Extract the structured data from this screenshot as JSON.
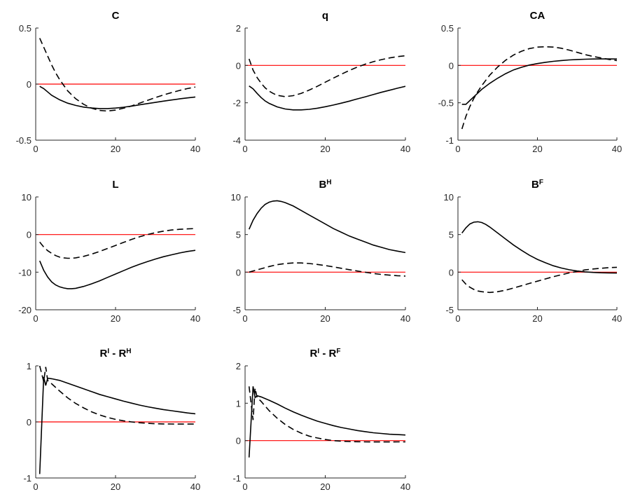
{
  "figure": {
    "background": "#ffffff",
    "colors": {
      "zero_line": "#ff0000",
      "series": "#000000",
      "axes": "#262626"
    }
  },
  "chart_data": [
    {
      "type": "line",
      "title": "C",
      "xlim": [
        0,
        40
      ],
      "ylim": [
        -0.5,
        0.5
      ],
      "xticks": [
        0,
        20,
        40
      ],
      "xtick_labels": [
        "0",
        "20",
        "40"
      ],
      "yticks": [
        -0.5,
        0,
        0.5
      ],
      "ytick_labels": [
        "-0.5",
        "0",
        "0.5"
      ],
      "hline": 0,
      "series": [
        {
          "style": "solid",
          "x": [
            1,
            2,
            3,
            4,
            5,
            6,
            8,
            10,
            12,
            14,
            16,
            18,
            20,
            22,
            24,
            26,
            28,
            30,
            32,
            34,
            36,
            38,
            40
          ],
          "y": [
            -0.02,
            -0.04,
            -0.07,
            -0.1,
            -0.12,
            -0.14,
            -0.17,
            -0.19,
            -0.205,
            -0.213,
            -0.218,
            -0.218,
            -0.214,
            -0.206,
            -0.196,
            -0.185,
            -0.174,
            -0.163,
            -0.152,
            -0.142,
            -0.132,
            -0.123,
            -0.115
          ]
        },
        {
          "style": "dashed",
          "x": [
            1,
            2,
            3,
            4,
            5,
            6,
            7,
            8,
            10,
            12,
            14,
            16,
            18,
            20,
            22,
            24,
            26,
            28,
            30,
            32,
            34,
            36,
            38,
            40
          ],
          "y": [
            0.41,
            0.33,
            0.25,
            0.17,
            0.1,
            0.04,
            -0.01,
            -0.06,
            -0.13,
            -0.18,
            -0.215,
            -0.235,
            -0.24,
            -0.232,
            -0.215,
            -0.195,
            -0.17,
            -0.145,
            -0.12,
            -0.097,
            -0.076,
            -0.057,
            -0.04,
            -0.026
          ]
        }
      ]
    },
    {
      "type": "line",
      "title": "q",
      "xlim": [
        0,
        40
      ],
      "ylim": [
        -4,
        2
      ],
      "xticks": [
        0,
        20,
        40
      ],
      "xtick_labels": [
        "0",
        "20",
        "40"
      ],
      "yticks": [
        -4,
        -2,
        0,
        2
      ],
      "ytick_labels": [
        "-4",
        "-2",
        "0",
        "2"
      ],
      "hline": 0,
      "series": [
        {
          "style": "solid",
          "x": [
            1,
            2,
            3,
            4,
            5,
            6,
            8,
            10,
            12,
            14,
            16,
            18,
            20,
            22,
            24,
            26,
            28,
            30,
            32,
            34,
            36,
            38,
            40
          ],
          "y": [
            -1.1,
            -1.25,
            -1.5,
            -1.72,
            -1.9,
            -2.03,
            -2.22,
            -2.33,
            -2.38,
            -2.38,
            -2.35,
            -2.29,
            -2.21,
            -2.12,
            -2.02,
            -1.91,
            -1.79,
            -1.68,
            -1.56,
            -1.44,
            -1.33,
            -1.22,
            -1.12
          ]
        },
        {
          "style": "dashed",
          "x": [
            1,
            2,
            3,
            4,
            5,
            6,
            7,
            8,
            10,
            12,
            14,
            16,
            18,
            20,
            22,
            24,
            26,
            28,
            30,
            32,
            34,
            36,
            38,
            40
          ],
          "y": [
            0.35,
            -0.25,
            -0.65,
            -0.95,
            -1.2,
            -1.38,
            -1.5,
            -1.6,
            -1.67,
            -1.62,
            -1.5,
            -1.32,
            -1.12,
            -0.9,
            -0.68,
            -0.47,
            -0.27,
            -0.09,
            0.07,
            0.2,
            0.31,
            0.4,
            0.47,
            0.52
          ]
        }
      ]
    },
    {
      "type": "line",
      "title": "CA",
      "xlim": [
        0,
        40
      ],
      "ylim": [
        -1,
        0.5
      ],
      "xticks": [
        0,
        20,
        40
      ],
      "xtick_labels": [
        "0",
        "20",
        "40"
      ],
      "yticks": [
        -1,
        -0.5,
        0,
        0.5
      ],
      "ytick_labels": [
        "-1",
        "-0.5",
        "0",
        "0.5"
      ],
      "hline": 0,
      "series": [
        {
          "style": "solid",
          "x": [
            1,
            2,
            3,
            4,
            5,
            6,
            8,
            10,
            12,
            14,
            16,
            18,
            20,
            22,
            24,
            26,
            28,
            30,
            32,
            34,
            36,
            38,
            40
          ],
          "y": [
            -0.52,
            -0.52,
            -0.47,
            -0.42,
            -0.37,
            -0.32,
            -0.24,
            -0.17,
            -0.11,
            -0.06,
            -0.025,
            0.005,
            0.025,
            0.042,
            0.055,
            0.065,
            0.073,
            0.079,
            0.083,
            0.086,
            0.087,
            0.087,
            0.086
          ]
        },
        {
          "style": "dashed",
          "x": [
            1,
            2,
            3,
            4,
            5,
            6,
            8,
            10,
            12,
            14,
            16,
            18,
            20,
            22,
            24,
            26,
            28,
            30,
            32,
            34,
            36,
            38,
            40
          ],
          "y": [
            -0.85,
            -0.68,
            -0.55,
            -0.44,
            -0.35,
            -0.27,
            -0.13,
            -0.02,
            0.07,
            0.14,
            0.19,
            0.225,
            0.245,
            0.25,
            0.245,
            0.23,
            0.205,
            0.175,
            0.145,
            0.12,
            0.1,
            0.08,
            0.065
          ]
        }
      ]
    },
    {
      "type": "line",
      "title": "L",
      "xlim": [
        0,
        40
      ],
      "ylim": [
        -20,
        10
      ],
      "xticks": [
        0,
        20,
        40
      ],
      "xtick_labels": [
        "0",
        "20",
        "40"
      ],
      "yticks": [
        -20,
        -10,
        0,
        10
      ],
      "ytick_labels": [
        "-20",
        "-10",
        "0",
        "10"
      ],
      "hline": 0,
      "series": [
        {
          "style": "solid",
          "x": [
            1,
            2,
            3,
            4,
            5,
            6,
            7,
            8,
            9,
            10,
            12,
            14,
            16,
            18,
            20,
            22,
            24,
            26,
            28,
            30,
            32,
            34,
            36,
            38,
            40
          ],
          "y": [
            -7,
            -9.5,
            -11.3,
            -12.6,
            -13.4,
            -13.9,
            -14.2,
            -14.4,
            -14.4,
            -14.3,
            -13.8,
            -13.1,
            -12.3,
            -11.4,
            -10.5,
            -9.6,
            -8.7,
            -7.9,
            -7.2,
            -6.5,
            -5.9,
            -5.4,
            -4.9,
            -4.5,
            -4.2
          ]
        },
        {
          "style": "dashed",
          "x": [
            1,
            2,
            3,
            4,
            5,
            6,
            7,
            8,
            9,
            10,
            12,
            14,
            16,
            18,
            20,
            22,
            24,
            26,
            28,
            30,
            32,
            34,
            36,
            38,
            40
          ],
          "y": [
            -2,
            -3.3,
            -4.3,
            -5,
            -5.6,
            -6,
            -6.2,
            -6.3,
            -6.3,
            -6.2,
            -5.8,
            -5.2,
            -4.5,
            -3.7,
            -2.9,
            -2.1,
            -1.3,
            -0.6,
            0,
            0.5,
            0.9,
            1.2,
            1.4,
            1.5,
            1.6
          ]
        }
      ]
    },
    {
      "type": "line",
      "title": "B",
      "title_superscript": "H",
      "xlim": [
        0,
        40
      ],
      "ylim": [
        -5,
        10
      ],
      "xticks": [
        0,
        20,
        40
      ],
      "xtick_labels": [
        "0",
        "20",
        "40"
      ],
      "yticks": [
        -5,
        0,
        5,
        10
      ],
      "ytick_labels": [
        "-5",
        "0",
        "5",
        "10"
      ],
      "hline": 0,
      "series": [
        {
          "style": "solid",
          "x": [
            1,
            2,
            3,
            4,
            5,
            6,
            7,
            8,
            9,
            10,
            12,
            14,
            16,
            18,
            20,
            22,
            24,
            26,
            28,
            30,
            32,
            34,
            36,
            38,
            40
          ],
          "y": [
            5.7,
            6.9,
            7.8,
            8.5,
            9,
            9.3,
            9.45,
            9.5,
            9.4,
            9.25,
            8.8,
            8.2,
            7.6,
            7,
            6.4,
            5.8,
            5.3,
            4.8,
            4.4,
            4,
            3.6,
            3.3,
            3,
            2.8,
            2.6
          ]
        },
        {
          "style": "dashed",
          "x": [
            1,
            2,
            4,
            6,
            8,
            10,
            12,
            14,
            16,
            18,
            20,
            22,
            24,
            26,
            28,
            30,
            32,
            34,
            36,
            38,
            40
          ],
          "y": [
            0,
            0.15,
            0.45,
            0.75,
            1,
            1.15,
            1.22,
            1.22,
            1.15,
            1.03,
            0.88,
            0.7,
            0.52,
            0.33,
            0.15,
            -0.02,
            -0.17,
            -0.3,
            -0.4,
            -0.47,
            -0.52
          ]
        }
      ]
    },
    {
      "type": "line",
      "title": "B",
      "title_superscript": "F",
      "xlim": [
        0,
        40
      ],
      "ylim": [
        -5,
        10
      ],
      "xticks": [
        0,
        20,
        40
      ],
      "xtick_labels": [
        "0",
        "20",
        "40"
      ],
      "yticks": [
        -5,
        0,
        5,
        10
      ],
      "ytick_labels": [
        "-5",
        "0",
        "5",
        "10"
      ],
      "hline": 0,
      "series": [
        {
          "style": "solid",
          "x": [
            1,
            2,
            3,
            4,
            5,
            6,
            7,
            8,
            10,
            12,
            14,
            16,
            18,
            20,
            22,
            24,
            26,
            28,
            30,
            32,
            34,
            36,
            38,
            40
          ],
          "y": [
            5.2,
            5.9,
            6.4,
            6.65,
            6.7,
            6.6,
            6.35,
            6,
            5.2,
            4.4,
            3.6,
            2.9,
            2.25,
            1.7,
            1.25,
            0.85,
            0.55,
            0.32,
            0.15,
            0.04,
            -0.03,
            -0.08,
            -0.1,
            -0.12
          ]
        },
        {
          "style": "dashed",
          "x": [
            1,
            2,
            3,
            4,
            5,
            6,
            7,
            8,
            9,
            10,
            12,
            14,
            16,
            18,
            20,
            22,
            24,
            26,
            28,
            30,
            32,
            34,
            36,
            38,
            40
          ],
          "y": [
            -1,
            -1.6,
            -2,
            -2.3,
            -2.5,
            -2.6,
            -2.65,
            -2.7,
            -2.65,
            -2.6,
            -2.4,
            -2.1,
            -1.8,
            -1.5,
            -1.2,
            -0.9,
            -0.6,
            -0.35,
            -0.1,
            0.1,
            0.3,
            0.42,
            0.52,
            0.6,
            0.65
          ]
        }
      ]
    },
    {
      "type": "line",
      "title": "R",
      "title_superscript": "I",
      "title_mid": " - R",
      "title_superscript2": "H",
      "xlim": [
        0,
        40
      ],
      "ylim": [
        -1,
        1
      ],
      "xticks": [
        0,
        20,
        40
      ],
      "xtick_labels": [
        "0",
        "20",
        "40"
      ],
      "yticks": [
        -1,
        0,
        1
      ],
      "ytick_labels": [
        "-1",
        "0",
        "1"
      ],
      "hline": 0,
      "series": [
        {
          "style": "solid",
          "x": [
            1,
            2,
            2.5,
            3,
            4,
            6,
            8,
            10,
            12,
            14,
            16,
            18,
            20,
            22,
            24,
            26,
            28,
            30,
            32,
            34,
            36,
            38,
            40
          ],
          "y": [
            -0.93,
            0.8,
            0.65,
            0.78,
            0.77,
            0.74,
            0.69,
            0.64,
            0.59,
            0.54,
            0.49,
            0.45,
            0.41,
            0.37,
            0.335,
            0.3,
            0.27,
            0.245,
            0.22,
            0.2,
            0.18,
            0.16,
            0.145
          ]
        },
        {
          "style": "dashed",
          "x": [
            1,
            2,
            2.5,
            3,
            4,
            6,
            8,
            10,
            12,
            14,
            16,
            18,
            20,
            22,
            24,
            26,
            28,
            30,
            32,
            34,
            36,
            38,
            40
          ],
          "y": [
            1.0,
            0.72,
            0.98,
            0.74,
            0.68,
            0.55,
            0.43,
            0.33,
            0.25,
            0.18,
            0.125,
            0.08,
            0.045,
            0.02,
            0.0,
            -0.015,
            -0.025,
            -0.032,
            -0.036,
            -0.038,
            -0.039,
            -0.039,
            -0.038
          ]
        }
      ]
    },
    {
      "type": "line",
      "title": "R",
      "title_superscript": "I",
      "title_mid": " - R",
      "title_superscript2": "F",
      "xlim": [
        0,
        40
      ],
      "ylim": [
        -1,
        2
      ],
      "xticks": [
        0,
        20,
        40
      ],
      "xtick_labels": [
        "0",
        "20",
        "40"
      ],
      "yticks": [
        -1,
        0,
        1,
        2
      ],
      "ytick_labels": [
        "-1",
        "0",
        "1",
        "2"
      ],
      "hline": 0,
      "series": [
        {
          "style": "solid",
          "x": [
            1,
            2,
            2.5,
            3,
            4,
            6,
            8,
            10,
            12,
            14,
            16,
            18,
            20,
            22,
            24,
            26,
            28,
            30,
            32,
            34,
            36,
            38,
            40
          ],
          "y": [
            -0.45,
            1.45,
            1.15,
            1.2,
            1.17,
            1.08,
            0.98,
            0.87,
            0.77,
            0.68,
            0.6,
            0.52,
            0.46,
            0.4,
            0.35,
            0.31,
            0.27,
            0.24,
            0.21,
            0.19,
            0.17,
            0.16,
            0.15
          ]
        },
        {
          "style": "dashed",
          "x": [
            1,
            2,
            2.5,
            3,
            4,
            6,
            8,
            10,
            12,
            14,
            16,
            18,
            20,
            22,
            24,
            26,
            28,
            30,
            32,
            34,
            36,
            38,
            40
          ],
          "y": [
            1.45,
            0.55,
            1.4,
            1.15,
            1.05,
            0.8,
            0.6,
            0.43,
            0.3,
            0.2,
            0.12,
            0.07,
            0.03,
            0.0,
            -0.015,
            -0.025,
            -0.03,
            -0.035,
            -0.037,
            -0.037,
            -0.036,
            -0.035,
            -0.034
          ]
        }
      ]
    }
  ]
}
